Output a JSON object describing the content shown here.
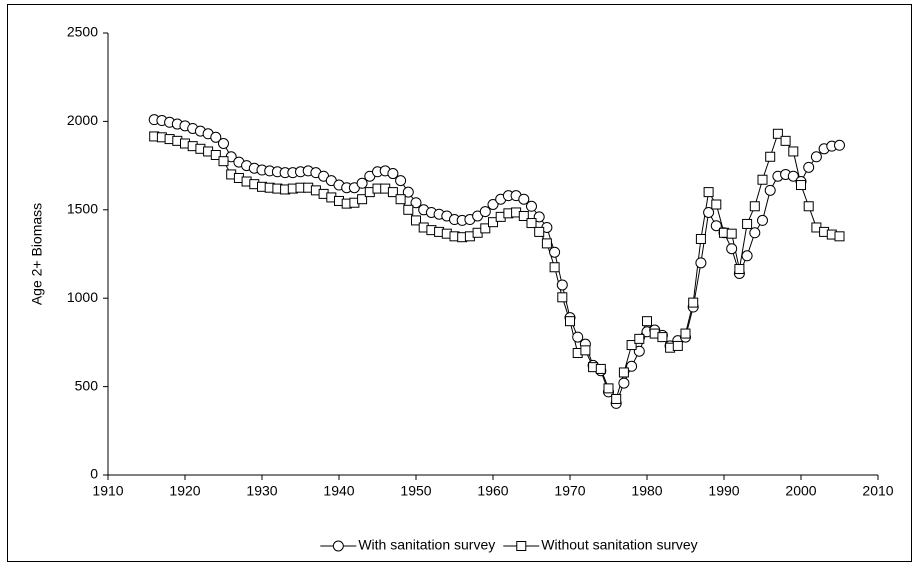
{
  "chart_data": {
    "type": "line",
    "y_label": "Age 2+ Biomass",
    "x": [
      1916,
      1917,
      1918,
      1919,
      1920,
      1921,
      1922,
      1923,
      1924,
      1925,
      1926,
      1927,
      1928,
      1929,
      1930,
      1931,
      1932,
      1933,
      1934,
      1935,
      1936,
      1937,
      1938,
      1939,
      1940,
      1941,
      1942,
      1943,
      1944,
      1945,
      1946,
      1947,
      1948,
      1949,
      1950,
      1951,
      1952,
      1953,
      1954,
      1955,
      1956,
      1957,
      1958,
      1959,
      1960,
      1961,
      1962,
      1963,
      1964,
      1965,
      1966,
      1967,
      1968,
      1969,
      1970,
      1971,
      1972,
      1973,
      1974,
      1975,
      1976,
      1977,
      1978,
      1979,
      1980,
      1981,
      1982,
      1983,
      1984,
      1985,
      1986,
      1987,
      1988,
      1989,
      1990,
      1991,
      1992,
      1993,
      1994,
      1995,
      1996,
      1997,
      1998,
      1999,
      2000,
      2001,
      2002,
      2003,
      2004,
      2005
    ],
    "series": [
      {
        "name": "With sanitation survey",
        "color": "#000000",
        "marker": "circle",
        "values": [
          2010,
          2005,
          1995,
          1985,
          1975,
          1960,
          1945,
          1930,
          1910,
          1875,
          1800,
          1770,
          1750,
          1735,
          1725,
          1720,
          1715,
          1710,
          1710,
          1715,
          1720,
          1710,
          1690,
          1665,
          1640,
          1625,
          1625,
          1650,
          1690,
          1715,
          1720,
          1705,
          1665,
          1600,
          1540,
          1500,
          1485,
          1475,
          1465,
          1445,
          1440,
          1445,
          1465,
          1490,
          1530,
          1560,
          1580,
          1580,
          1560,
          1520,
          1460,
          1400,
          1260,
          1075,
          890,
          780,
          740,
          620,
          590,
          470,
          405,
          520,
          615,
          700,
          810,
          820,
          790,
          730,
          760,
          780,
          950,
          1200,
          1485,
          1410,
          1370,
          1280,
          1140,
          1240,
          1370,
          1440,
          1610,
          1690,
          1700,
          1690,
          1660,
          1740,
          1800,
          1845,
          1860,
          1865
        ]
      },
      {
        "name": "Without sanitation survey",
        "color": "#000000",
        "marker": "square",
        "values": [
          1915,
          1910,
          1900,
          1890,
          1875,
          1860,
          1845,
          1830,
          1810,
          1775,
          1700,
          1680,
          1660,
          1645,
          1630,
          1625,
          1620,
          1615,
          1620,
          1625,
          1625,
          1610,
          1590,
          1570,
          1550,
          1535,
          1540,
          1560,
          1600,
          1620,
          1620,
          1600,
          1560,
          1500,
          1440,
          1400,
          1385,
          1375,
          1365,
          1350,
          1345,
          1350,
          1370,
          1395,
          1430,
          1460,
          1480,
          1485,
          1465,
          1425,
          1375,
          1310,
          1175,
          1005,
          870,
          690,
          705,
          610,
          600,
          490,
          430,
          580,
          735,
          770,
          870,
          800,
          780,
          720,
          730,
          800,
          975,
          1335,
          1600,
          1530,
          1370,
          1365,
          1165,
          1420,
          1520,
          1670,
          1800,
          1930,
          1890,
          1830,
          1640,
          1520,
          1400,
          1375,
          1360,
          1350
        ]
      }
    ],
    "xlim": [
      1910,
      2010
    ],
    "xticks": [
      1910,
      1920,
      1930,
      1940,
      1950,
      1960,
      1970,
      1980,
      1990,
      2000,
      2010
    ],
    "ylim": [
      0,
      2500
    ],
    "yticks": [
      0,
      500,
      1000,
      1500,
      2000,
      2500
    ],
    "grid": false,
    "legend": "bottom"
  }
}
